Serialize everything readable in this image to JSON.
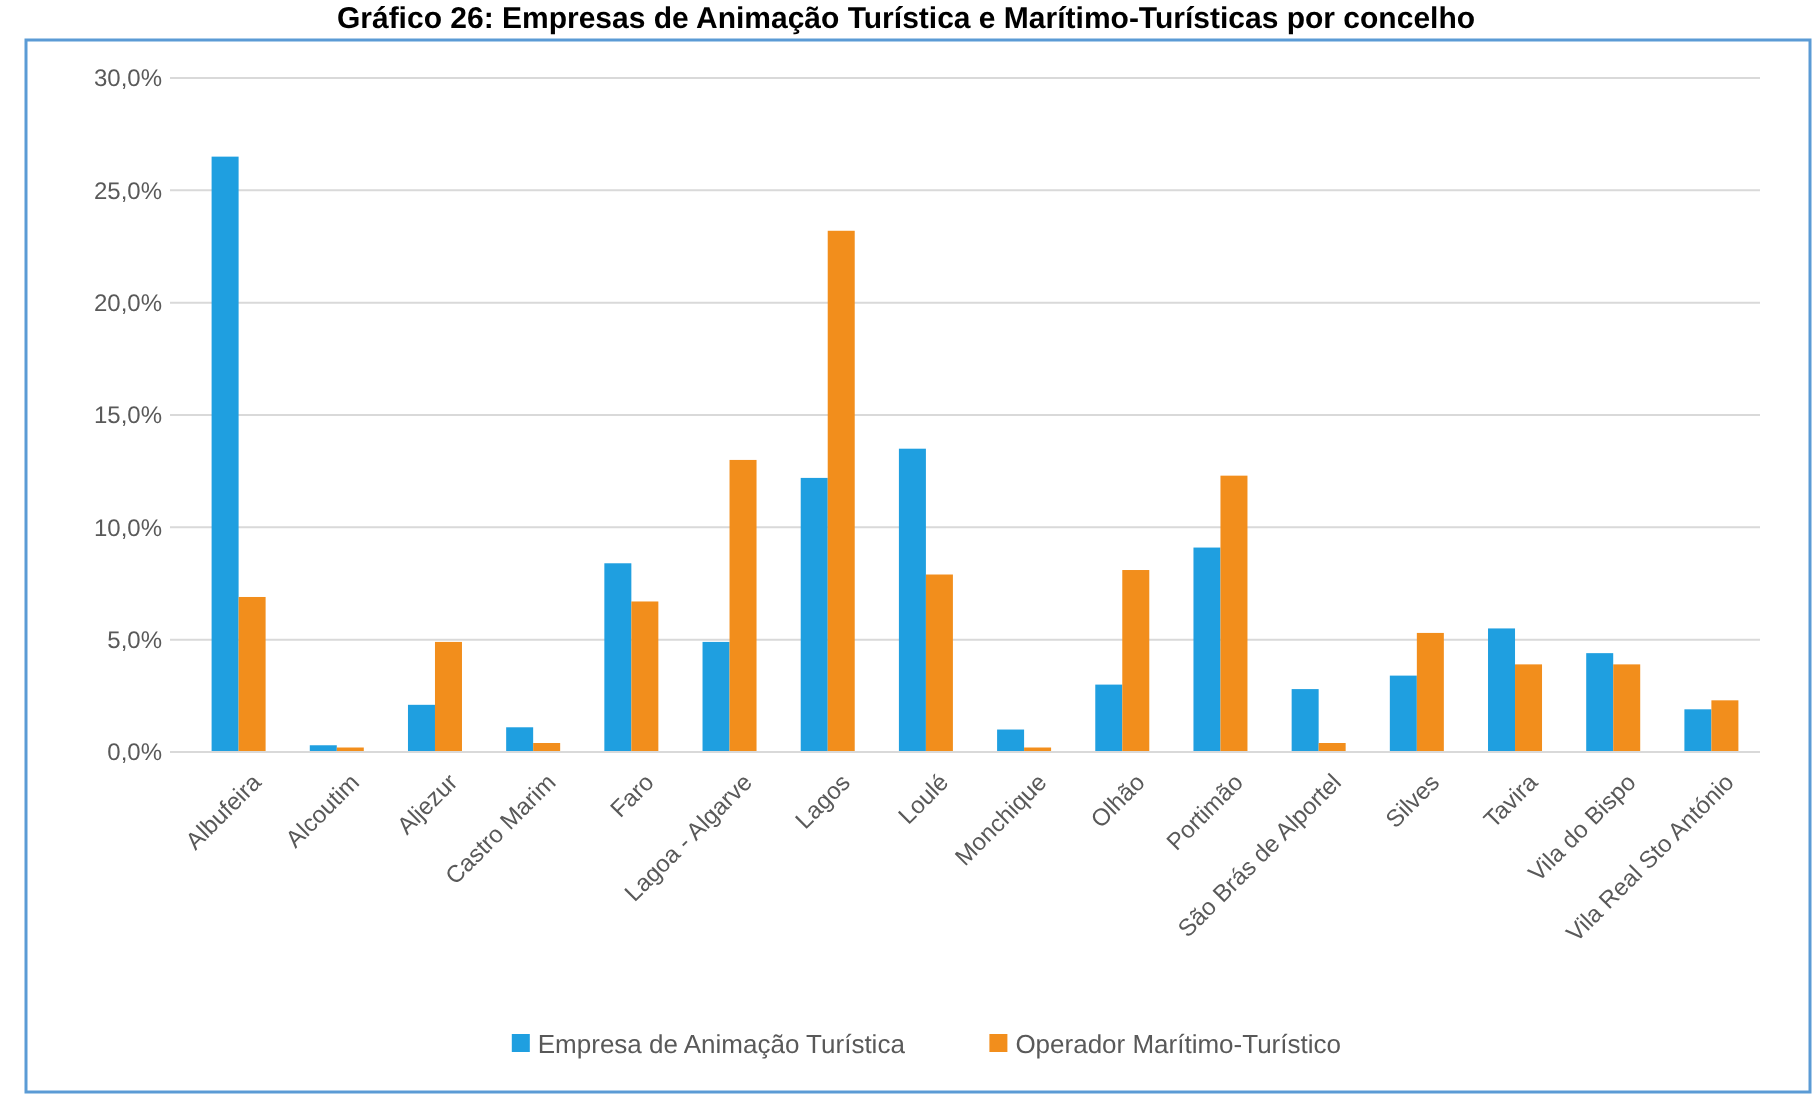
{
  "chart_data": {
    "type": "bar",
    "title": "Gráfico 26: Empresas de Animação Turística e Marítimo-Turísticas por concelho",
    "categories": [
      "Albufeira",
      "Alcoutim",
      "Aljezur",
      "Castro Marim",
      "Faro",
      "Lagoa - Algarve",
      "Lagos",
      "Loulé",
      "Monchique",
      "Olhão",
      "Portimão",
      "São Brás de Alportel",
      "Silves",
      "Tavira",
      "Vila do Bispo",
      "Vila Real Sto António"
    ],
    "series": [
      {
        "name": "Empresa de Animação Turística",
        "color": "#1f9fe0",
        "values": [
          26.5,
          0.3,
          2.1,
          1.1,
          8.4,
          4.9,
          12.2,
          13.5,
          1.0,
          3.0,
          9.1,
          2.8,
          3.4,
          5.5,
          4.4,
          1.9
        ]
      },
      {
        "name": "Operador Marítimo-Turístico",
        "color": "#f28e1c",
        "values": [
          6.9,
          0.2,
          4.9,
          0.4,
          6.7,
          13.0,
          23.2,
          7.9,
          0.2,
          8.1,
          12.3,
          0.4,
          5.3,
          3.9,
          3.9,
          2.3
        ]
      }
    ],
    "ylim": [
      0,
      30
    ],
    "yticks": [
      {
        "value": 0,
        "label": "0,0%"
      },
      {
        "value": 5,
        "label": "5,0%"
      },
      {
        "value": 10,
        "label": "10,0%"
      },
      {
        "value": 15,
        "label": "15,0%"
      },
      {
        "value": 20,
        "label": "20,0%"
      },
      {
        "value": 25,
        "label": "25,0%"
      },
      {
        "value": 30,
        "label": "30,0%"
      }
    ],
    "grid": "y",
    "legend": "bottom"
  }
}
